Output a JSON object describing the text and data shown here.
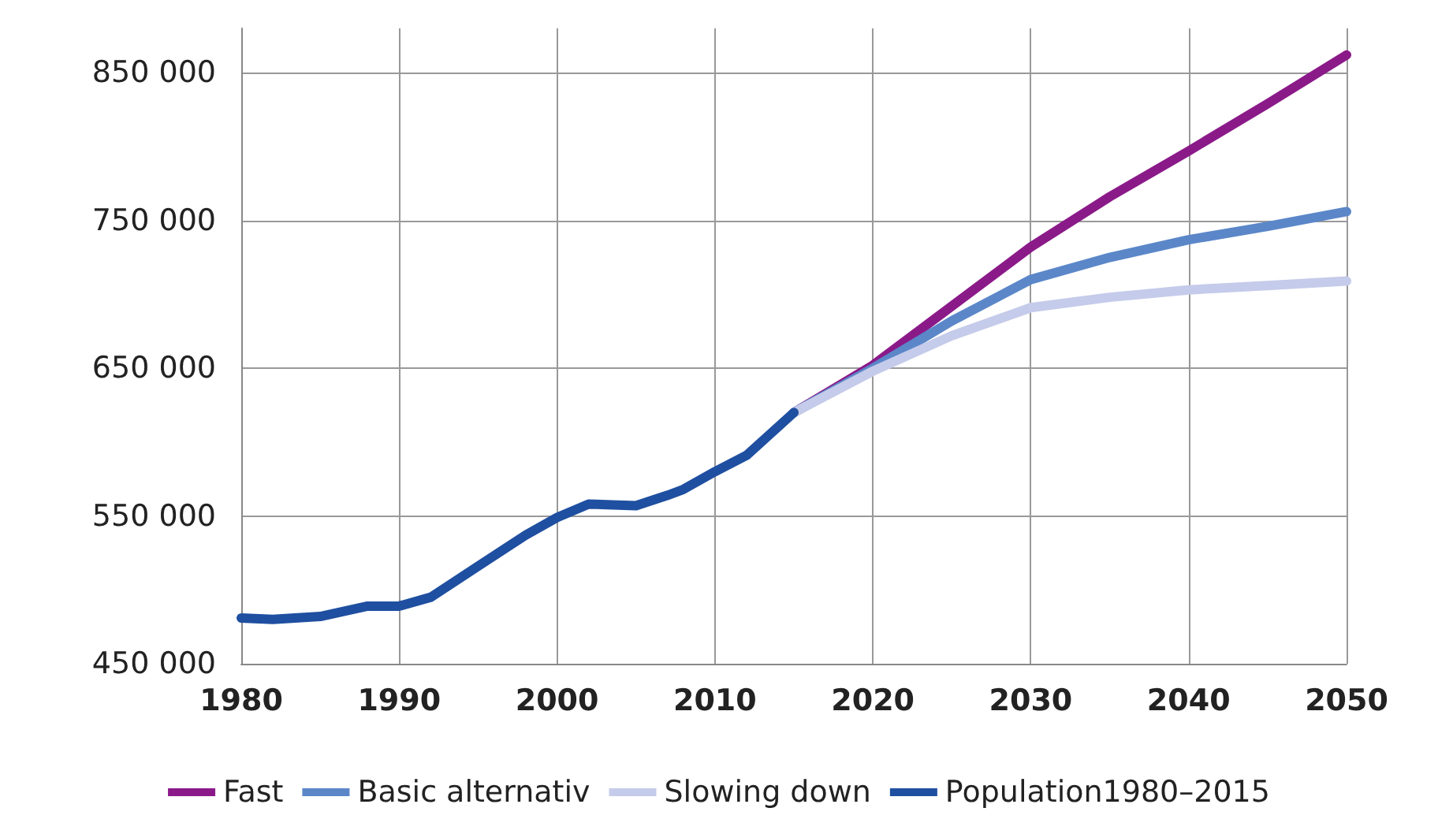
{
  "chart_data": {
    "type": "line",
    "xlim": [
      1980,
      2050
    ],
    "xticks": [
      1980,
      1990,
      2000,
      2010,
      2020,
      2030,
      2040,
      2050
    ],
    "ylim": [
      450000,
      880000
    ],
    "yticks": [
      {
        "value": 450000,
        "label": "450 000"
      },
      {
        "value": 550000,
        "label": "550 000"
      },
      {
        "value": 650000,
        "label": "650 000"
      },
      {
        "value": 750000,
        "label": "750 000"
      },
      {
        "value": 850000,
        "label": "850 000"
      }
    ],
    "grid": true,
    "legend": "bottom",
    "marker": "none",
    "line_style": "solid",
    "series": [
      {
        "name": "Fast",
        "color": "#8b1a89",
        "x": [
          2015,
          2020,
          2025,
          2030,
          2035,
          2040,
          2045,
          2050
        ],
        "values": [
          620000,
          652000,
          692000,
          732000,
          766000,
          797000,
          829000,
          862000
        ]
      },
      {
        "name": "Basic alternativ",
        "color": "#5b87c9",
        "x": [
          2015,
          2020,
          2025,
          2030,
          2035,
          2040,
          2045,
          2050
        ],
        "values": [
          620000,
          650000,
          682000,
          710000,
          725000,
          737000,
          746000,
          756000
        ]
      },
      {
        "name": "Slowing down",
        "color": "#c5cbea",
        "x": [
          2015,
          2020,
          2025,
          2030,
          2035,
          2040,
          2045,
          2050
        ],
        "values": [
          620000,
          648000,
          672000,
          691000,
          698000,
          703000,
          706000,
          709000
        ]
      },
      {
        "name": "Population1980–2015",
        "color": "#1f4fa0",
        "x": [
          1980,
          1982,
          1985,
          1988,
          1990,
          1992,
          1995,
          1998,
          2000,
          2002,
          2005,
          2007,
          2008,
          2010,
          2012,
          2015
        ],
        "values": [
          481000,
          480000,
          482000,
          489000,
          489000,
          495000,
          516000,
          537000,
          549000,
          558000,
          557000,
          564000,
          568000,
          580000,
          591000,
          620000
        ]
      }
    ]
  }
}
